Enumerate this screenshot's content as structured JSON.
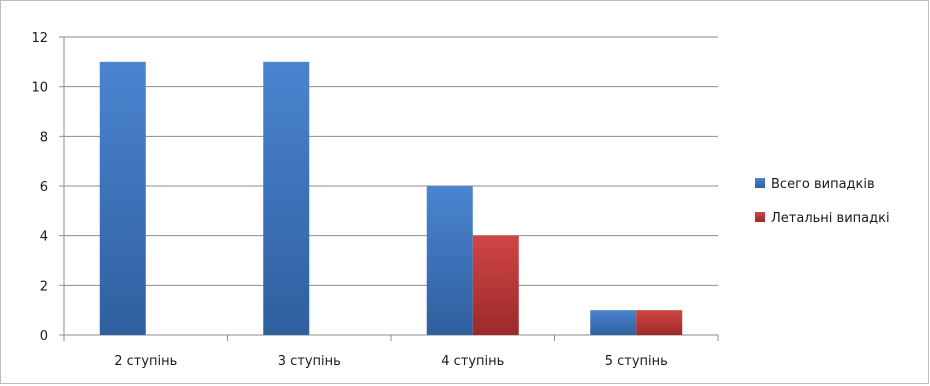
{
  "chart_data": {
    "type": "bar",
    "categories": [
      "2 ступінь",
      "3 ступінь",
      "4 ступінь",
      "5 ступінь"
    ],
    "series": [
      {
        "name": "Всего випадків",
        "values": [
          11,
          11,
          6,
          1
        ],
        "color": "#3a6fb8"
      },
      {
        "name": "Летальні випадкі",
        "values": [
          0,
          0,
          4,
          1
        ],
        "color": "#b83232"
      }
    ],
    "ylim": [
      0,
      12
    ],
    "yticks": [
      0,
      2,
      4,
      6,
      8,
      10,
      12
    ],
    "grid": true,
    "legend_position": "right"
  }
}
